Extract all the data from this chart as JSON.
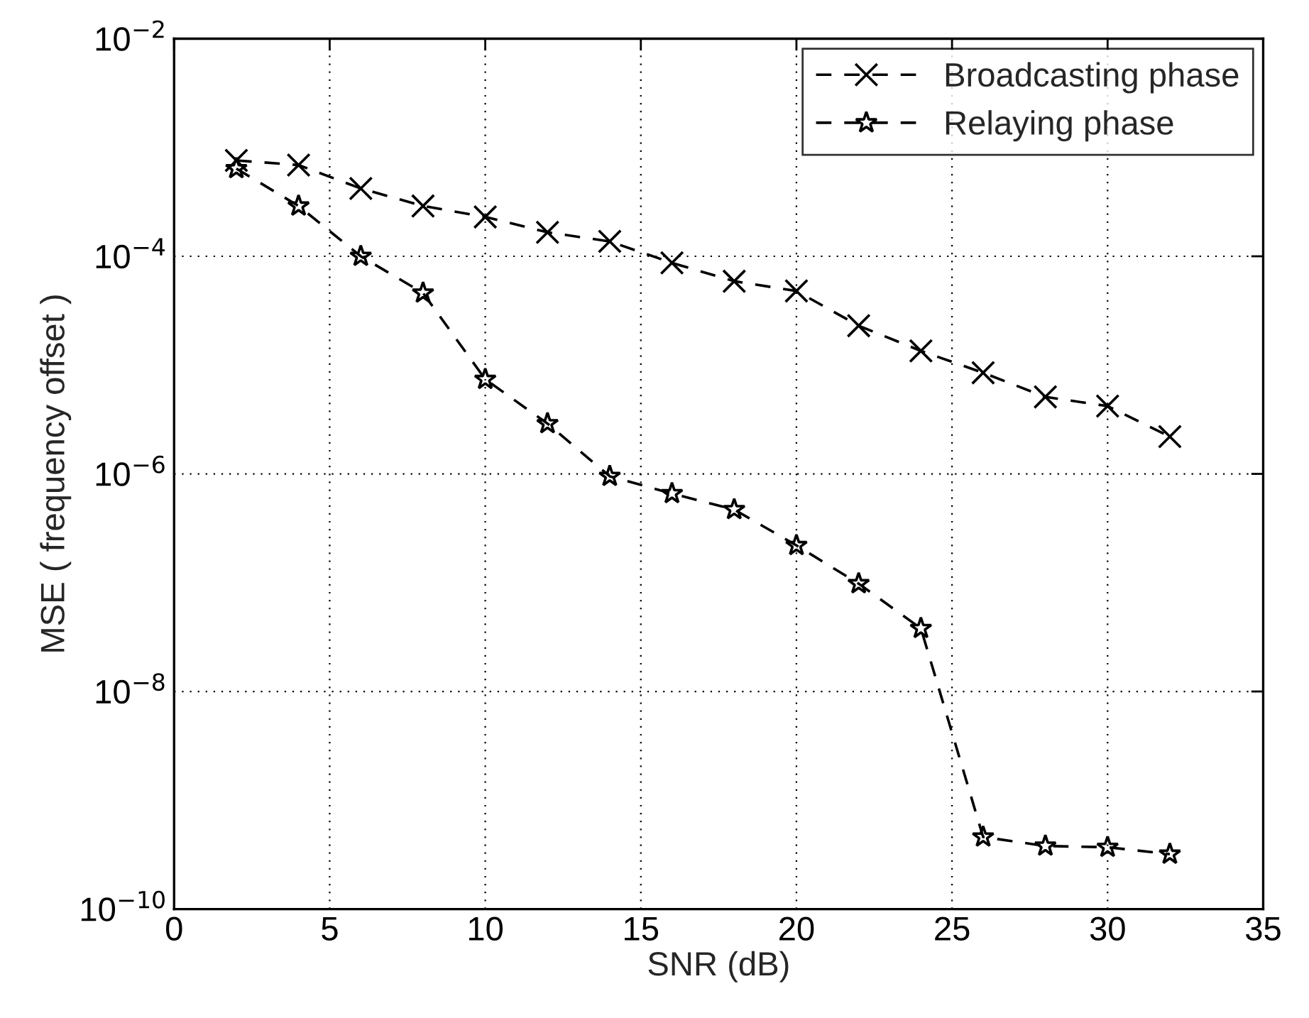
{
  "chart_data": {
    "type": "line",
    "xlabel": "SNR (dB)",
    "ylabel": "MSE ( frequency offset )",
    "x": [
      2,
      4,
      6,
      8,
      10,
      12,
      14,
      16,
      18,
      20,
      22,
      24,
      26,
      28,
      30,
      32
    ],
    "series": [
      {
        "name": "Broadcasting phase",
        "color": "#000000",
        "marker": "cross",
        "line_style": "dashed",
        "values": [
          0.00076,
          0.00069,
          0.00042,
          0.00029,
          0.00023,
          0.000166,
          0.000137,
          8.7e-05,
          5.9e-05,
          4.8e-05,
          2.3e-05,
          1.35e-05,
          8.5e-06,
          5.1e-06,
          4.2e-06,
          2.2e-06
        ]
      },
      {
        "name": "Relaying phase",
        "color": "#000000",
        "marker": "star",
        "line_style": "dashed",
        "values": [
          0.00064,
          0.00029,
          0.0001,
          4.6e-05,
          7.4e-06,
          2.9e-06,
          9.5e-07,
          6.6e-07,
          4.7e-07,
          2.2e-07,
          9.8e-08,
          3.8e-08,
          4.6e-10,
          3.8e-10,
          3.7e-10,
          3.2e-10
        ]
      }
    ],
    "log": "y",
    "xlim": [
      0,
      35
    ],
    "xticks": [
      0,
      5,
      10,
      15,
      20,
      25,
      30,
      35
    ],
    "ylim": [
      1e-10,
      0.01
    ],
    "yticks": [
      {
        "value": 1e-10,
        "label": "10$^{−10}$"
      },
      {
        "value": 1e-08,
        "label": "10$^{−8}$"
      },
      {
        "value": 1e-06,
        "label": "10$^{−6}$"
      },
      {
        "value": 0.0001,
        "label": "10$^{−4}$"
      },
      {
        "value": 0.01,
        "label": "10$^{−2}$"
      }
    ],
    "grid": true,
    "legend": "top right"
  }
}
